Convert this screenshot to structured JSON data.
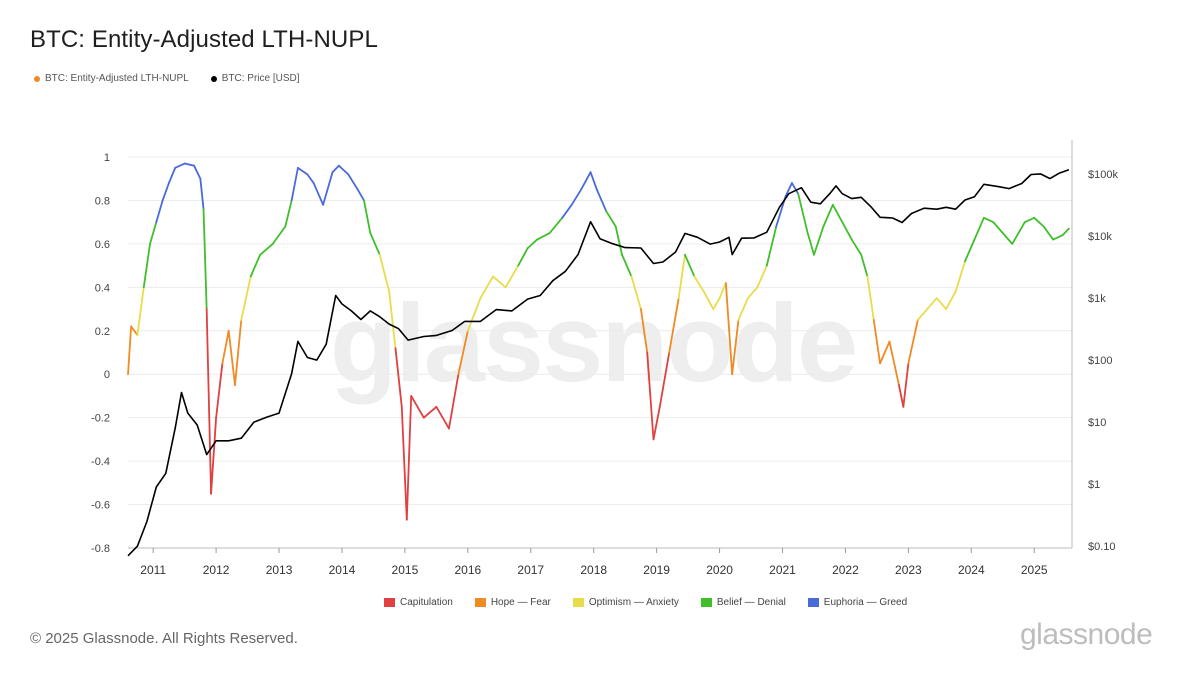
{
  "title": "BTC: Entity-Adjusted LTH-NUPL",
  "watermark": "glassnode",
  "brand": "glassnode",
  "copyright": "© 2025 Glassnode. All Rights Reserved.",
  "colors": {
    "capitulation": "#e0403f",
    "hope_fear": "#f08a22",
    "optimism_anxiety": "#e9dc4a",
    "belief_denial": "#3fbf2a",
    "euphoria_greed": "#4a6ad8",
    "nupl_legend": "#f08a22",
    "price": "#000000"
  },
  "chart_data": {
    "type": "line",
    "legend_position": "top-left",
    "legend": [
      {
        "label": "BTC: Entity-Adjusted LTH-NUPL",
        "color": "#f08a22"
      },
      {
        "label": "BTC: Price [USD]",
        "color": "#000000"
      }
    ],
    "zone_legend": [
      {
        "label": "Capitulation",
        "color": "#e0403f"
      },
      {
        "label": "Hope — Fear",
        "color": "#f08a22"
      },
      {
        "label": "Optimism — Anxiety",
        "color": "#e9dc4a"
      },
      {
        "label": "Belief — Denial",
        "color": "#3fbf2a"
      },
      {
        "label": "Euphoria — Greed",
        "color": "#4a6ad8"
      }
    ],
    "x_ticks": [
      "2011",
      "2012",
      "2013",
      "2014",
      "2015",
      "2016",
      "2017",
      "2018",
      "2019",
      "2020",
      "2021",
      "2022",
      "2023",
      "2024",
      "2025"
    ],
    "xlim": [
      2010.6,
      2025.6
    ],
    "y_left": {
      "ticks": [
        "1",
        "0.8",
        "0.6",
        "0.4",
        "0.2",
        "0",
        "-0.2",
        "-0.4",
        "-0.6",
        "-0.8"
      ],
      "tick_values": [
        1,
        0.8,
        0.6,
        0.4,
        0.2,
        0,
        -0.2,
        -0.4,
        -0.6,
        -0.8
      ],
      "ylim": [
        -0.8,
        1.0
      ]
    },
    "y_right": {
      "ticks": [
        "$100k",
        "$10k",
        "$1k",
        "$100",
        "$10",
        "$1",
        "$0.10"
      ],
      "tick_values": [
        100000,
        10000,
        1000,
        100,
        10,
        1,
        0.1
      ],
      "scale": "log",
      "ylim": [
        0.06,
        120000
      ]
    },
    "grid": true,
    "series": [
      {
        "name": "BTC: Entity-Adjusted LTH-NUPL",
        "axis": "left",
        "points": [
          [
            2010.6,
            0.0
          ],
          [
            2010.65,
            0.22
          ],
          [
            2010.75,
            0.18
          ],
          [
            2010.85,
            0.4
          ],
          [
            2010.95,
            0.6
          ],
          [
            2011.05,
            0.7
          ],
          [
            2011.15,
            0.8
          ],
          [
            2011.25,
            0.88
          ],
          [
            2011.35,
            0.95
          ],
          [
            2011.5,
            0.97
          ],
          [
            2011.65,
            0.96
          ],
          [
            2011.75,
            0.9
          ],
          [
            2011.8,
            0.76
          ],
          [
            2011.85,
            0.3
          ],
          [
            2011.92,
            -0.55
          ],
          [
            2012.0,
            -0.2
          ],
          [
            2012.1,
            0.05
          ],
          [
            2012.2,
            0.2
          ],
          [
            2012.3,
            -0.05
          ],
          [
            2012.4,
            0.25
          ],
          [
            2012.55,
            0.45
          ],
          [
            2012.7,
            0.55
          ],
          [
            2012.9,
            0.6
          ],
          [
            2013.1,
            0.68
          ],
          [
            2013.2,
            0.8
          ],
          [
            2013.3,
            0.95
          ],
          [
            2013.45,
            0.92
          ],
          [
            2013.55,
            0.88
          ],
          [
            2013.7,
            0.78
          ],
          [
            2013.85,
            0.93
          ],
          [
            2013.95,
            0.96
          ],
          [
            2014.1,
            0.92
          ],
          [
            2014.25,
            0.85
          ],
          [
            2014.35,
            0.8
          ],
          [
            2014.45,
            0.65
          ],
          [
            2014.6,
            0.55
          ],
          [
            2014.75,
            0.38
          ],
          [
            2014.85,
            0.12
          ],
          [
            2014.95,
            -0.15
          ],
          [
            2015.03,
            -0.67
          ],
          [
            2015.1,
            -0.1
          ],
          [
            2015.3,
            -0.2
          ],
          [
            2015.5,
            -0.15
          ],
          [
            2015.7,
            -0.25
          ],
          [
            2015.85,
            0.0
          ],
          [
            2016.0,
            0.2
          ],
          [
            2016.2,
            0.35
          ],
          [
            2016.4,
            0.45
          ],
          [
            2016.6,
            0.4
          ],
          [
            2016.8,
            0.5
          ],
          [
            2016.95,
            0.58
          ],
          [
            2017.1,
            0.62
          ],
          [
            2017.3,
            0.65
          ],
          [
            2017.5,
            0.72
          ],
          [
            2017.65,
            0.78
          ],
          [
            2017.8,
            0.85
          ],
          [
            2017.95,
            0.93
          ],
          [
            2018.05,
            0.85
          ],
          [
            2018.2,
            0.75
          ],
          [
            2018.35,
            0.68
          ],
          [
            2018.45,
            0.55
          ],
          [
            2018.6,
            0.45
          ],
          [
            2018.75,
            0.3
          ],
          [
            2018.85,
            0.1
          ],
          [
            2018.95,
            -0.3
          ],
          [
            2019.05,
            -0.15
          ],
          [
            2019.2,
            0.1
          ],
          [
            2019.35,
            0.35
          ],
          [
            2019.45,
            0.55
          ],
          [
            2019.6,
            0.45
          ],
          [
            2019.75,
            0.38
          ],
          [
            2019.9,
            0.3
          ],
          [
            2020.0,
            0.35
          ],
          [
            2020.1,
            0.42
          ],
          [
            2020.2,
            0.0
          ],
          [
            2020.3,
            0.25
          ],
          [
            2020.45,
            0.35
          ],
          [
            2020.6,
            0.4
          ],
          [
            2020.75,
            0.5
          ],
          [
            2020.9,
            0.68
          ],
          [
            2021.05,
            0.82
          ],
          [
            2021.15,
            0.88
          ],
          [
            2021.25,
            0.83
          ],
          [
            2021.4,
            0.65
          ],
          [
            2021.5,
            0.55
          ],
          [
            2021.65,
            0.68
          ],
          [
            2021.8,
            0.78
          ],
          [
            2021.95,
            0.7
          ],
          [
            2022.1,
            0.62
          ],
          [
            2022.25,
            0.55
          ],
          [
            2022.35,
            0.45
          ],
          [
            2022.45,
            0.25
          ],
          [
            2022.55,
            0.05
          ],
          [
            2022.7,
            0.15
          ],
          [
            2022.85,
            -0.05
          ],
          [
            2022.92,
            -0.15
          ],
          [
            2023.0,
            0.05
          ],
          [
            2023.15,
            0.25
          ],
          [
            2023.3,
            0.3
          ],
          [
            2023.45,
            0.35
          ],
          [
            2023.6,
            0.3
          ],
          [
            2023.75,
            0.38
          ],
          [
            2023.9,
            0.52
          ],
          [
            2024.05,
            0.62
          ],
          [
            2024.2,
            0.72
          ],
          [
            2024.35,
            0.7
          ],
          [
            2024.5,
            0.65
          ],
          [
            2024.65,
            0.6
          ],
          [
            2024.85,
            0.7
          ],
          [
            2025.0,
            0.72
          ],
          [
            2025.15,
            0.68
          ],
          [
            2025.3,
            0.62
          ],
          [
            2025.45,
            0.64
          ],
          [
            2025.55,
            0.67
          ]
        ]
      },
      {
        "name": "BTC: Price [USD]",
        "axis": "right",
        "points": [
          [
            2010.6,
            0.07
          ],
          [
            2010.75,
            0.1
          ],
          [
            2010.9,
            0.25
          ],
          [
            2011.05,
            0.9
          ],
          [
            2011.2,
            1.5
          ],
          [
            2011.35,
            8
          ],
          [
            2011.45,
            30
          ],
          [
            2011.55,
            14
          ],
          [
            2011.7,
            9
          ],
          [
            2011.85,
            3
          ],
          [
            2012.0,
            5
          ],
          [
            2012.2,
            5
          ],
          [
            2012.4,
            5.5
          ],
          [
            2012.6,
            10
          ],
          [
            2012.8,
            12
          ],
          [
            2013.0,
            14
          ],
          [
            2013.2,
            60
          ],
          [
            2013.3,
            200
          ],
          [
            2013.45,
            110
          ],
          [
            2013.6,
            100
          ],
          [
            2013.75,
            180
          ],
          [
            2013.9,
            1100
          ],
          [
            2014.0,
            800
          ],
          [
            2014.15,
            620
          ],
          [
            2014.3,
            450
          ],
          [
            2014.45,
            620
          ],
          [
            2014.6,
            500
          ],
          [
            2014.75,
            380
          ],
          [
            2014.9,
            320
          ],
          [
            2015.05,
            210
          ],
          [
            2015.3,
            240
          ],
          [
            2015.5,
            250
          ],
          [
            2015.75,
            300
          ],
          [
            2015.95,
            420
          ],
          [
            2016.2,
            420
          ],
          [
            2016.45,
            650
          ],
          [
            2016.7,
            620
          ],
          [
            2016.95,
            960
          ],
          [
            2017.15,
            1100
          ],
          [
            2017.35,
            1900
          ],
          [
            2017.55,
            2700
          ],
          [
            2017.75,
            5000
          ],
          [
            2017.95,
            17000
          ],
          [
            2018.1,
            9000
          ],
          [
            2018.3,
            7500
          ],
          [
            2018.5,
            6500
          ],
          [
            2018.75,
            6400
          ],
          [
            2018.95,
            3600
          ],
          [
            2019.1,
            3800
          ],
          [
            2019.3,
            5500
          ],
          [
            2019.45,
            11000
          ],
          [
            2019.65,
            9500
          ],
          [
            2019.85,
            7400
          ],
          [
            2020.0,
            8000
          ],
          [
            2020.15,
            9500
          ],
          [
            2020.2,
            5000
          ],
          [
            2020.35,
            9200
          ],
          [
            2020.55,
            9300
          ],
          [
            2020.75,
            11500
          ],
          [
            2020.95,
            29000
          ],
          [
            2021.1,
            48000
          ],
          [
            2021.3,
            60000
          ],
          [
            2021.45,
            35000
          ],
          [
            2021.6,
            33000
          ],
          [
            2021.75,
            48000
          ],
          [
            2021.85,
            64000
          ],
          [
            2021.95,
            48000
          ],
          [
            2022.1,
            40000
          ],
          [
            2022.25,
            42000
          ],
          [
            2022.4,
            30000
          ],
          [
            2022.55,
            20000
          ],
          [
            2022.75,
            19500
          ],
          [
            2022.9,
            16500
          ],
          [
            2023.05,
            23000
          ],
          [
            2023.25,
            28000
          ],
          [
            2023.45,
            27000
          ],
          [
            2023.6,
            29000
          ],
          [
            2023.75,
            27000
          ],
          [
            2023.9,
            38000
          ],
          [
            2024.05,
            43000
          ],
          [
            2024.2,
            68000
          ],
          [
            2024.45,
            62000
          ],
          [
            2024.6,
            58000
          ],
          [
            2024.8,
            70000
          ],
          [
            2024.95,
            98000
          ],
          [
            2025.1,
            100000
          ],
          [
            2025.25,
            84000
          ],
          [
            2025.4,
            103000
          ],
          [
            2025.55,
            117000
          ]
        ]
      }
    ]
  }
}
